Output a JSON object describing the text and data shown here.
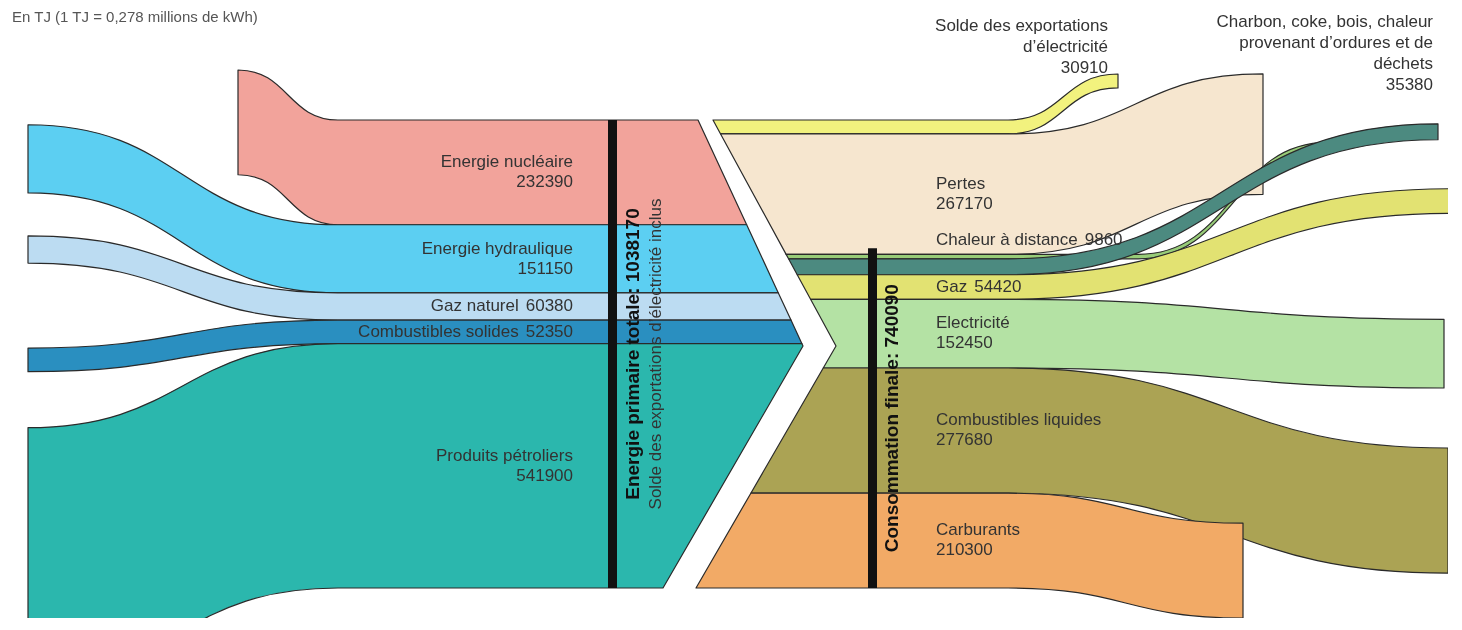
{
  "chart_data": {
    "type": "other",
    "categories": [
      "Energie nucléaire",
      "Energie hydraulique",
      "Gaz naturel",
      "Combustibles solides",
      "Produits pétroliers",
      "Solde des exportations d’électricité",
      "Pertes",
      "Chaleur à distance",
      "Charbon, coke, bois, chaleur provenant d’ordures et de déchets",
      "Gaz",
      "Electricité",
      "Combustibles liquides",
      "Carburants"
    ],
    "series": [
      {
        "values": [
          232390,
          151150,
          60380,
          52350,
          541900,
          null,
          null,
          null,
          null,
          null,
          null,
          null,
          null
        ],
        "colors": [
          "#f2a39b",
          "#5ccff2",
          "#bcdcf2",
          "#2a8fc0",
          "#2bb7ad",
          null,
          null,
          null,
          null,
          null,
          null,
          null,
          null
        ]
      },
      {
        "values": [
          null,
          null,
          null,
          null,
          null,
          30910,
          267170,
          9860,
          35380,
          54420,
          152450,
          277680,
          210300
        ],
        "colors": [
          null,
          null,
          null,
          null,
          null,
          "#f2f27e",
          "#f6e6cf",
          "#98cc78",
          "#4c8a80",
          "#e2e272",
          "#b4e2a4",
          "#aba354",
          "#f2aa66"
        ]
      }
    ],
    "data_labels": true,
    "annotations": [
      "En TJ (1 TJ = 0,278 millions de kWh)",
      "Energie primaire totale: 1038170",
      "Solde des exportations d’électricité inclus",
      "Consommation finale: 740090"
    ]
  }
}
